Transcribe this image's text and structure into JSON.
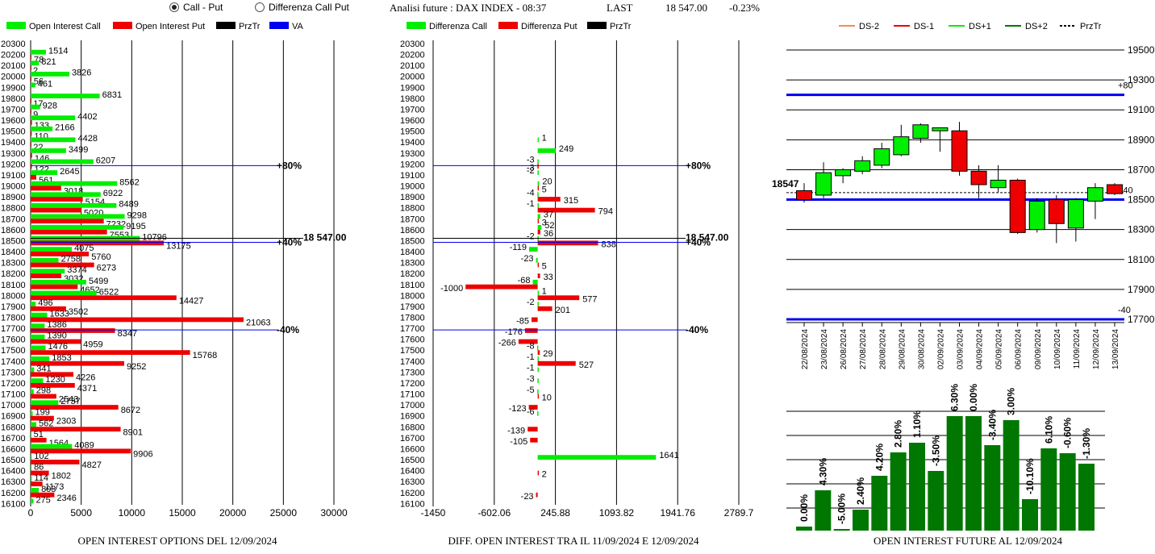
{
  "header": {
    "option_call_put": "Call - Put",
    "option_diff": "Differenza Call Put",
    "selected": "call_put",
    "title": "Analisi future : DAX INDEX - 08:37",
    "last_label": "LAST",
    "last_value": "18 547.00",
    "change": "-0.23%"
  },
  "colors": {
    "call": "#00ee00",
    "put": "#ee0000",
    "przTr": "#000000",
    "va": "#0000ee",
    "bull_bar": "#007700"
  },
  "chart_data": [
    {
      "id": "oi_options",
      "type": "bar",
      "orientation": "horizontal",
      "title": "OPEN INTEREST OPTIONS DEL 12/09/2024",
      "legend": [
        "Open Interest Call",
        "Open Interest Put",
        "PrzTr",
        "VA"
      ],
      "strikes": [
        20300,
        20200,
        20100,
        20000,
        19900,
        19800,
        19700,
        19600,
        19500,
        19400,
        19300,
        19200,
        19100,
        19000,
        18900,
        18800,
        18700,
        18600,
        18500,
        18400,
        18300,
        18200,
        18100,
        18000,
        17900,
        17800,
        17700,
        17600,
        17500,
        17400,
        17300,
        17200,
        17100,
        17000,
        16900,
        16800,
        16700,
        16600,
        16500,
        16400,
        16300,
        16200,
        16100
      ],
      "series": [
        {
          "name": "Open Interest Call",
          "values": [
            null,
            1514,
            821,
            3826,
            461,
            6831,
            928,
            4402,
            2166,
            4428,
            3499,
            6207,
            2645,
            8562,
            6922,
            8489,
            9298,
            9195,
            10796,
            4075,
            2758,
            3374,
            5499,
            6522,
            496,
            1633,
            1386,
            1390,
            1476,
            1853,
            341,
            1230,
            298,
            2737,
            199,
            562,
            51,
            4089,
            102,
            86,
            114,
            803,
            275
          ]
        },
        {
          "name": "Open Interest Put",
          "values": [
            null,
            78,
            2,
            56,
            null,
            17,
            9,
            133,
            110,
            22,
            146,
            122,
            561,
            3018,
            5154,
            5020,
            7232,
            7553,
            13175,
            5760,
            6273,
            3032,
            4652,
            14427,
            3502,
            21063,
            8347,
            4959,
            15768,
            9252,
            4226,
            4371,
            2543,
            8672,
            2303,
            8901,
            1564,
            9906,
            4827,
            1802,
            1173,
            2346,
            null
          ]
        }
      ],
      "xticks": [
        "0",
        "5000",
        "10000",
        "15000",
        "20000",
        "25000",
        "30000"
      ],
      "xlim": [
        0,
        30000
      ],
      "price_label": "18 547.00",
      "annotations": [
        {
          "strike": 19200,
          "text": "+80%"
        },
        {
          "strike": 18500,
          "text": "+40%"
        },
        {
          "strike": 17700,
          "text": "-40%"
        }
      ]
    },
    {
      "id": "diff_oi",
      "type": "bar",
      "orientation": "horizontal",
      "title": "DIFF. OPEN INTEREST TRA IL 11/09/2024 E 12/09/2024",
      "legend": [
        "Differenza Call",
        "Differenza Put",
        "PrzTr"
      ],
      "strikes": [
        20300,
        20200,
        20100,
        20000,
        19900,
        19800,
        19700,
        19600,
        19500,
        19400,
        19300,
        19200,
        19100,
        19000,
        18900,
        18800,
        18700,
        18600,
        18500,
        18400,
        18300,
        18200,
        18100,
        18000,
        17900,
        17800,
        17700,
        17600,
        17500,
        17400,
        17300,
        17200,
        17100,
        17000,
        16900,
        16800,
        16700,
        16600,
        16500,
        16400,
        16300,
        16200,
        16100
      ],
      "series": [
        {
          "name": "Differenza Call",
          "values": [
            null,
            null,
            null,
            null,
            null,
            null,
            null,
            null,
            null,
            1,
            249,
            -3,
            -2,
            20,
            -4,
            -1,
            37,
            52,
            -2,
            -119,
            -23,
            null,
            -68,
            1,
            -2,
            null,
            null,
            null,
            -8,
            -1,
            -1,
            -3,
            -5,
            null,
            -6,
            null,
            null,
            null,
            1641,
            null,
            null,
            null,
            null
          ]
        },
        {
          "name": "Differenza Put",
          "values": [
            null,
            null,
            null,
            null,
            null,
            null,
            null,
            null,
            null,
            null,
            null,
            -3,
            null,
            5,
            315,
            794,
            3,
            36,
            838,
            null,
            5,
            33,
            -1000,
            577,
            201,
            -85,
            -176,
            -266,
            29,
            527,
            null,
            null,
            10,
            -123,
            null,
            -139,
            -105,
            null,
            null,
            2,
            null,
            -23,
            null
          ]
        }
      ],
      "xticks": [
        "-1450",
        "-602.06",
        "245.88",
        "1093.82",
        "1941.76",
        "2789.7"
      ],
      "xlim": [
        -1450,
        2789.7
      ],
      "price_label": "18 547.00",
      "annotations": [
        {
          "strike": 19200,
          "text": "+80%"
        },
        {
          "strike": 18500,
          "text": "+40%"
        },
        {
          "strike": 17700,
          "text": "-40%"
        }
      ]
    },
    {
      "id": "candles",
      "type": "candlestick",
      "legend": [
        "DS-2",
        "DS-1",
        "DS+1",
        "DS+2",
        "PrzTr"
      ],
      "legend_colors": [
        "#f08c5a",
        "#ee0000",
        "#00ee00",
        "#007700",
        "#000000"
      ],
      "dates": [
        "22/08/2024",
        "23/08/2024",
        "26/08/2024",
        "27/08/2024",
        "28/08/2024",
        "29/08/2024",
        "30/08/2024",
        "02/09/2024",
        "03/09/2024",
        "04/09/2024",
        "05/09/2024",
        "06/09/2024",
        "09/09/2024",
        "10/09/2024",
        "11/09/2024",
        "12/09/2024",
        "13/09/2024"
      ],
      "candles": [
        {
          "o": 18560,
          "h": 18610,
          "l": 18480,
          "c": 18500
        },
        {
          "o": 18530,
          "h": 18750,
          "l": 18510,
          "c": 18680
        },
        {
          "o": 18660,
          "h": 18710,
          "l": 18610,
          "c": 18700
        },
        {
          "o": 18690,
          "h": 18790,
          "l": 18670,
          "c": 18760
        },
        {
          "o": 18730,
          "h": 18880,
          "l": 18710,
          "c": 18840
        },
        {
          "o": 18800,
          "h": 19000,
          "l": 18790,
          "c": 18920
        },
        {
          "o": 18910,
          "h": 19010,
          "l": 18880,
          "c": 19000
        },
        {
          "o": 18960,
          "h": 18980,
          "l": 18820,
          "c": 18980
        },
        {
          "o": 18960,
          "h": 19020,
          "l": 18660,
          "c": 18690
        },
        {
          "o": 18690,
          "h": 18730,
          "l": 18510,
          "c": 18600
        },
        {
          "o": 18580,
          "h": 18730,
          "l": 18550,
          "c": 18630
        },
        {
          "o": 18630,
          "h": 18640,
          "l": 18270,
          "c": 18280
        },
        {
          "o": 18300,
          "h": 18510,
          "l": 18280,
          "c": 18490
        },
        {
          "o": 18500,
          "h": 18530,
          "l": 18210,
          "c": 18340
        },
        {
          "o": 18310,
          "h": 18510,
          "l": 18220,
          "c": 18500
        },
        {
          "o": 18490,
          "h": 18610,
          "l": 18370,
          "c": 18580
        },
        {
          "o": 18600,
          "h": 18610,
          "l": 18530,
          "c": 18540
        }
      ],
      "yticks": [
        "19500",
        "19300",
        "19100",
        "18900",
        "18700",
        "18500",
        "18300",
        "18100",
        "17900",
        "17700"
      ],
      "ylim": [
        17700,
        19500
      ],
      "price": 18547,
      "price_label": "18547",
      "levels": [
        {
          "value": 19200,
          "label": "+80"
        },
        {
          "value": 18500,
          "label": "+40"
        },
        {
          "value": 17700,
          "label": "-40"
        }
      ]
    },
    {
      "id": "oi_future",
      "type": "bar",
      "title": "OPEN INTEREST FUTURE AL 12/09/2024",
      "labels": [
        "0.00%",
        "4.30%",
        "-5.00%",
        "2.40%",
        "4.20%",
        "2.80%",
        "1.10%",
        "-3.50%",
        "6.30%",
        "0.00%",
        "-3.40%",
        "3.00%",
        "-10.10%",
        "6.10%",
        "-0.60%",
        "-1.30%"
      ],
      "values": [
        5,
        50,
        2,
        26,
        68,
        97,
        109,
        74,
        142,
        142,
        106,
        137,
        39,
        102,
        96,
        83
      ]
    }
  ]
}
